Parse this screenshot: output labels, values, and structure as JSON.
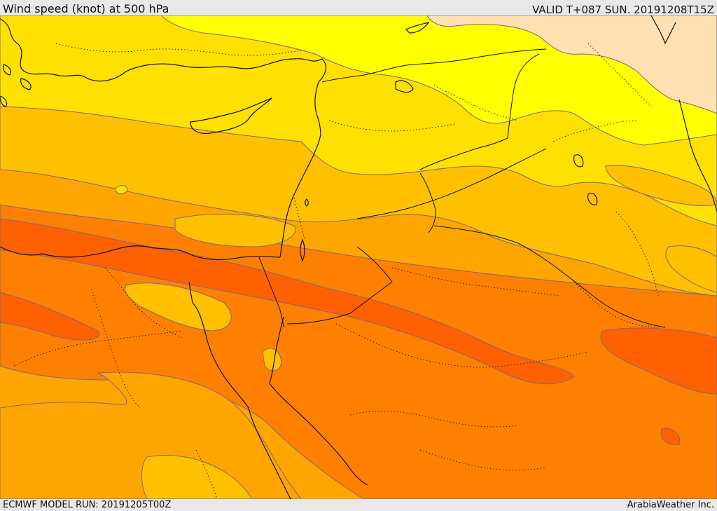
{
  "header": {
    "title": "Wind speed (knot) at 500 hPa",
    "valid": "VALID T+087 SUN. 20191208T15Z"
  },
  "footer": {
    "model_run": "ECMWF MODEL RUN: 20191205T00Z",
    "credit": "ArabiaWeather Inc."
  },
  "map": {
    "field": "wind speed at 500 hPa",
    "units": "knot",
    "contour_line_color": "#7a6a8a",
    "coastline_color": "#111111",
    "border_style": "dotted",
    "speed_colors": {
      "weakest": "#ffe0b0",
      "weak": "#ffff00",
      "light": "#ffe000",
      "moderate": "#ffc000",
      "strong": "#ffa500",
      "stronger": "#ff8000",
      "strongest": "#ff6000"
    }
  }
}
